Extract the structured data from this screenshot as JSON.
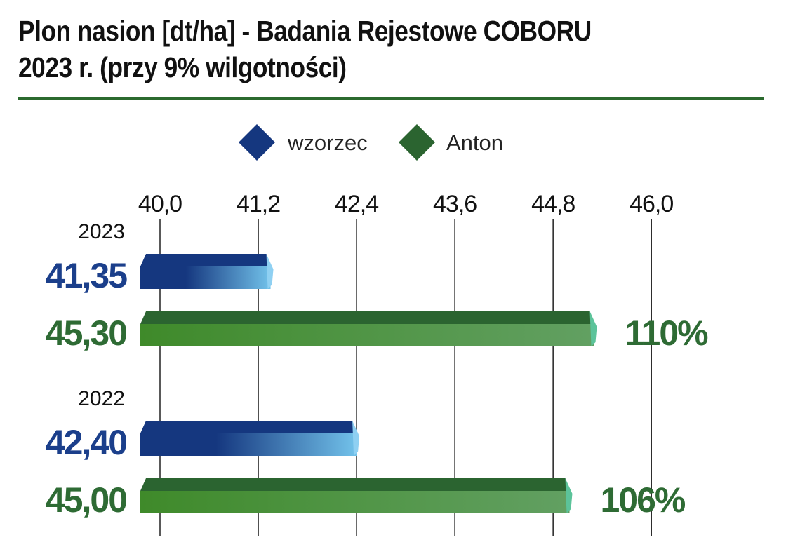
{
  "chart_data": {
    "type": "bar",
    "orientation": "horizontal",
    "title_lines": [
      "Plon nasion [dt/ha] - Badania Rejestowe COBORU",
      "2023 r. (przy 9% wilgotności)"
    ],
    "xlim": [
      40.0,
      46.0
    ],
    "x_ticks": [
      "40,0",
      "41,2",
      "42,4",
      "43,6",
      "44,8",
      "46,0"
    ],
    "x_tick_values": [
      40.0,
      41.2,
      42.4,
      43.6,
      44.8,
      46.0
    ],
    "legend_position": "top-center",
    "series": [
      {
        "name": "wzorzec",
        "color": "#1b3f8b"
      },
      {
        "name": "Anton",
        "color": "#2e6b34"
      }
    ],
    "groups": [
      {
        "label": "2023",
        "bars": [
          {
            "series": "wzorzec",
            "value": 41.35,
            "value_label": "41,35",
            "percent_label": ""
          },
          {
            "series": "Anton",
            "value": 45.3,
            "value_label": "45,30",
            "percent_label": "110%"
          }
        ]
      },
      {
        "label": "2022",
        "bars": [
          {
            "series": "wzorzec",
            "value": 42.4,
            "value_label": "42,40",
            "percent_label": ""
          },
          {
            "series": "Anton",
            "value": 45.0,
            "value_label": "45,00",
            "percent_label": "106%"
          }
        ]
      }
    ],
    "grid": true
  },
  "colors": {
    "blue_dark": "#15377f",
    "blue_light": "#72c2ea",
    "green_dark": "#3f8a2a",
    "green_light": "#62a062",
    "green_top": "#2b6430",
    "green_cap": "#5cc39a",
    "blue_cap": "#8fd0f2",
    "label_blue": "#1b3f8b",
    "label_green": "#2e6b34"
  }
}
